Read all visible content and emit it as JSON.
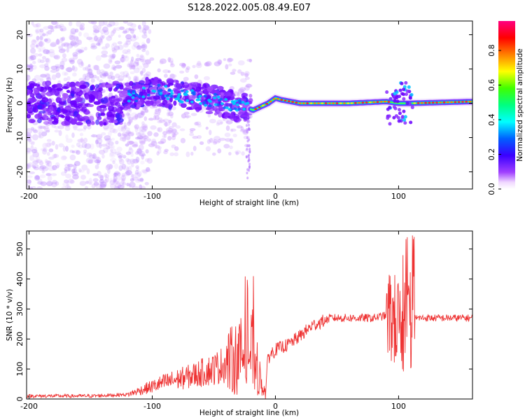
{
  "title": "S128.2022.005.08.49.E07",
  "chart_data": [
    {
      "type": "heatmap",
      "xlabel": "Height of straight line (km)",
      "ylabel": "Frequency (Hz)",
      "xlim": [
        -202,
        160
      ],
      "ylim": [
        -25,
        24
      ],
      "xticks": [
        "-200",
        "-100",
        "0",
        "100"
      ],
      "yticks": [
        "-20",
        "-10",
        "0",
        "10",
        "20"
      ],
      "colorbar": {
        "label": "Normalized spectral amplitude",
        "range": [
          0,
          0.97
        ],
        "ticks": [
          "0.0",
          "0.2",
          "0.4",
          "0.6",
          "0.8"
        ]
      },
      "ridge": [
        [
          -125,
          1
        ],
        [
          -110,
          3
        ],
        [
          -100,
          4
        ],
        [
          -90,
          3
        ],
        [
          -80,
          2.5
        ],
        [
          -70,
          2
        ],
        [
          -60,
          1.5
        ],
        [
          -50,
          1
        ],
        [
          -40,
          0
        ],
        [
          -30,
          -1
        ],
        [
          -22,
          -1.5
        ],
        [
          -18,
          -2
        ],
        [
          -12,
          -1
        ],
        [
          -6,
          0
        ],
        [
          0,
          1.5
        ],
        [
          5,
          1
        ],
        [
          20,
          0
        ],
        [
          60,
          0
        ],
        [
          90,
          0.5
        ],
        [
          100,
          0
        ],
        [
          110,
          0
        ],
        [
          160,
          0.5
        ]
      ]
    },
    {
      "type": "line",
      "series_color": "#ee3333",
      "xlabel": "Height of straight line (km)",
      "ylabel": "SNR (10 * v/v)",
      "xlim": [
        -202,
        160
      ],
      "ylim": [
        0,
        560
      ],
      "xticks": [
        "-200",
        "-100",
        "0",
        "100"
      ],
      "yticks": [
        "0",
        "100",
        "200",
        "300",
        "400",
        "500"
      ],
      "envelope": [
        [
          -202,
          10
        ],
        [
          -150,
          10
        ],
        [
          -120,
          15
        ],
        [
          -105,
          35
        ],
        [
          -90,
          55
        ],
        [
          -70,
          75
        ],
        [
          -50,
          100
        ],
        [
          -35,
          130
        ],
        [
          -25,
          150
        ],
        [
          -18,
          160
        ],
        [
          -12,
          60
        ],
        [
          -8,
          20
        ],
        [
          -6,
          140
        ],
        [
          0,
          165
        ],
        [
          10,
          180
        ],
        [
          20,
          210
        ],
        [
          30,
          245
        ],
        [
          45,
          270
        ],
        [
          60,
          270
        ],
        [
          80,
          270
        ],
        [
          92,
          280
        ],
        [
          100,
          250
        ],
        [
          105,
          240
        ],
        [
          110,
          250
        ],
        [
          113,
          270
        ],
        [
          120,
          270
        ],
        [
          160,
          270
        ]
      ]
    }
  ]
}
